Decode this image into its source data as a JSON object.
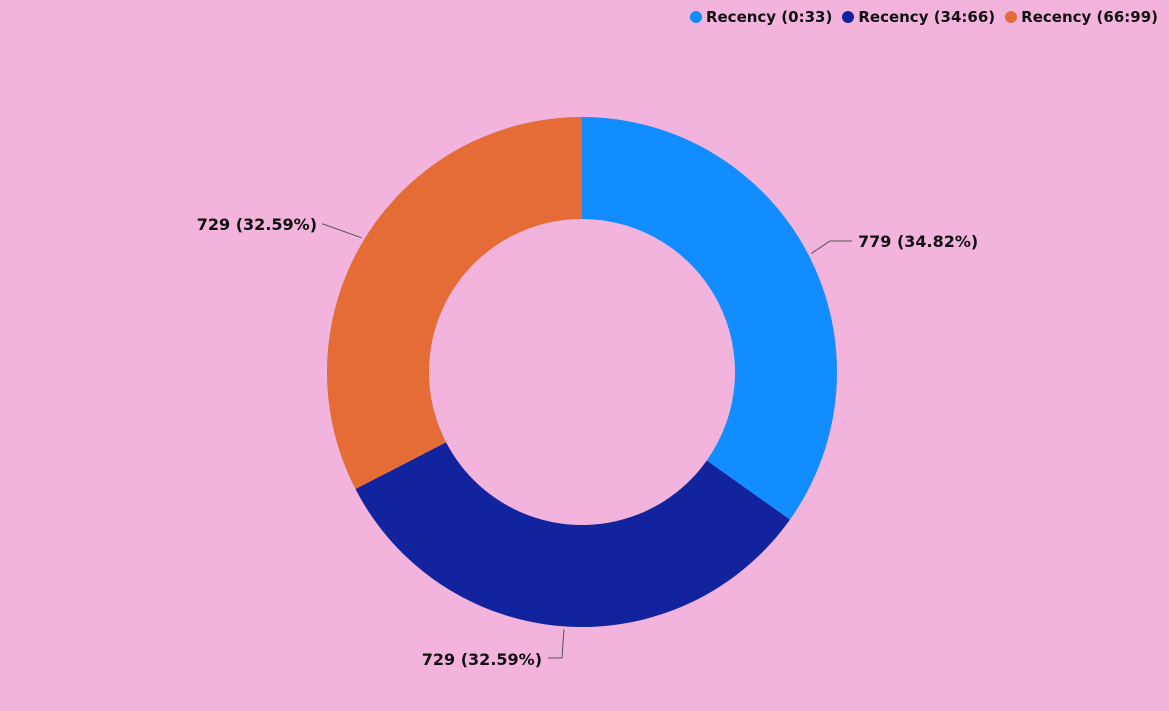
{
  "chart_data": {
    "type": "pie",
    "donut": true,
    "legend_position": "top-right",
    "series": [
      {
        "name": "Recency (0:33)",
        "value": 779,
        "percent": 34.82,
        "label": "779 (34.82%)",
        "color": "#118DFF"
      },
      {
        "name": "Recency (34:66)",
        "value": 729,
        "percent": 32.59,
        "label": "729 (32.59%)",
        "color": "#12239E"
      },
      {
        "name": "Recency (66:99)",
        "value": 729,
        "percent": 32.59,
        "label": "729 (32.59%)",
        "color": "#E66C37"
      }
    ]
  },
  "colors": {
    "background": "#F2B3DC",
    "leader_line": "#555555"
  }
}
